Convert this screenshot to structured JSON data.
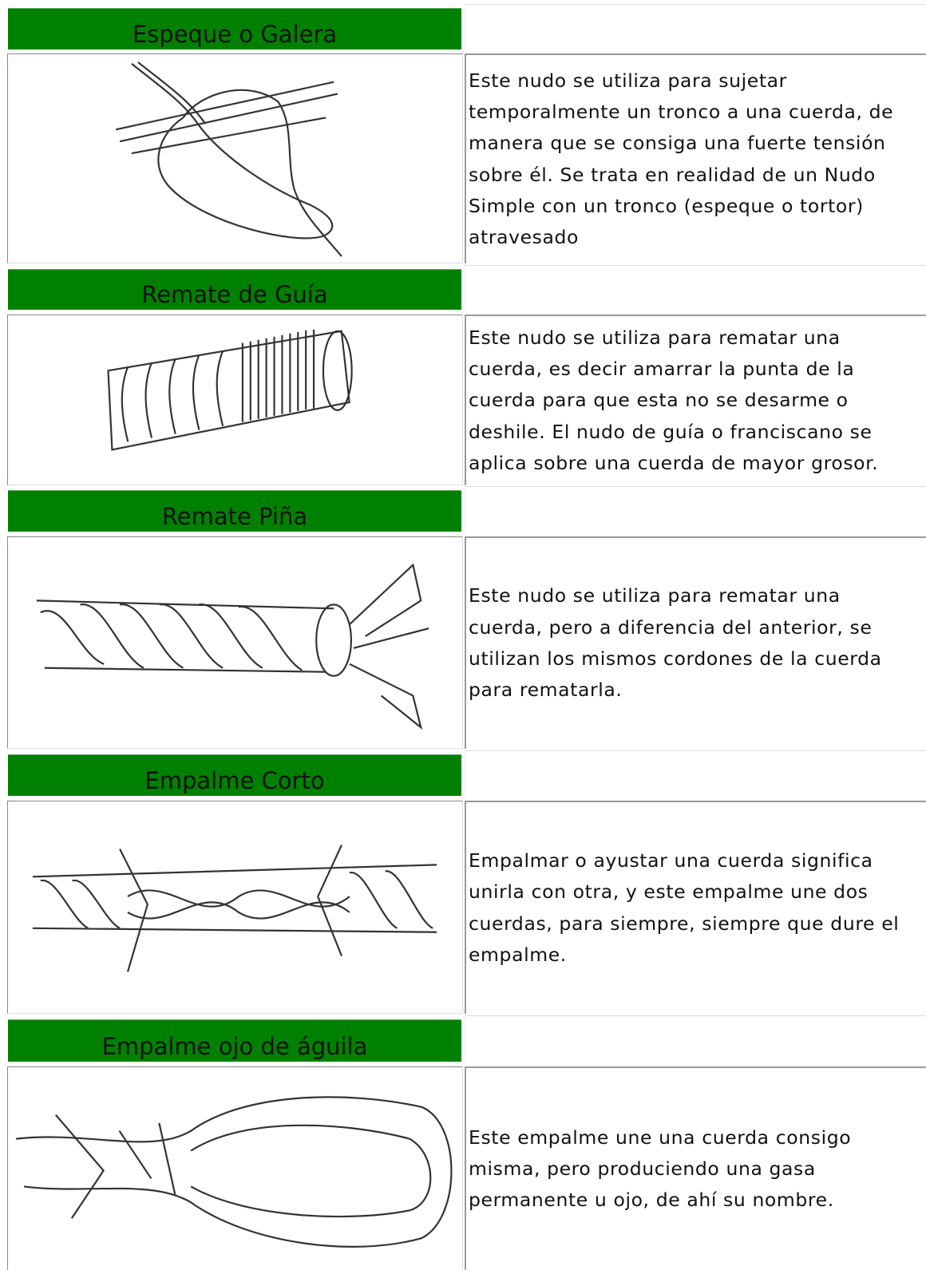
{
  "knots": [
    {
      "name": "Espeque o Galera",
      "description": "Este nudo se utiliza para sujetar temporalmente un tronco a una cuerda, de manera que se consiga una fuerte tensión sobre él. Se trata en realidad de un Nudo Simple con un tronco (espeque o tortor) atravesado"
    },
    {
      "name": "Remate de Guía",
      "description": "Este nudo se utiliza para rematar una cuerda, es decir amarrar la punta de la cuerda para que esta no se desarme o deshile. El nudo de guía o franciscano se aplica sobre una cuerda de mayor grosor."
    },
    {
      "name": "Remate Piña",
      "description": "Este nudo se utiliza para rematar una cuerda, pero a diferencia del anterior, se utilizan los mismos cordones de la cuerda para rematarla."
    },
    {
      "name": "Empalme Corto",
      "description": "Empalmar o ayustar una cuerda significa unirla con otra, y este empalme une dos cuerdas, para siempre, siempre que dure el empalme."
    },
    {
      "name": "Empalme ojo de águila",
      "description": "Este empalme une una cuerda consigo misma, pero produciendo una gasa permanente u ojo, de ahí su nombre."
    }
  ]
}
